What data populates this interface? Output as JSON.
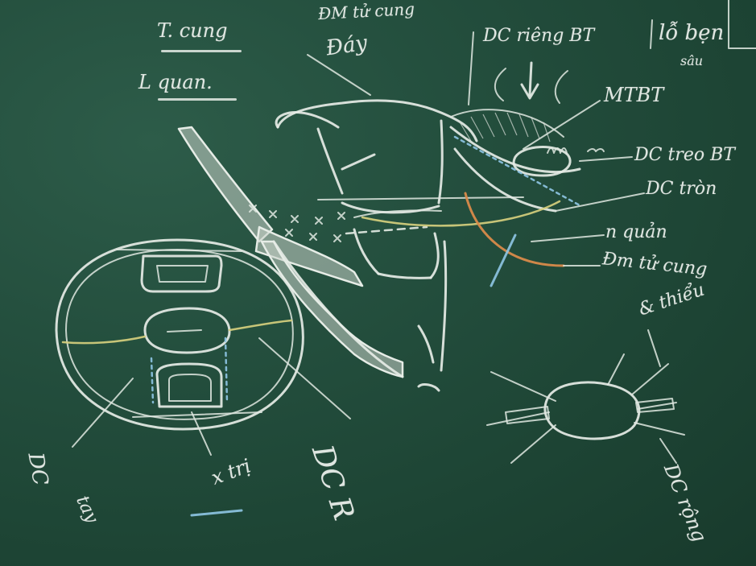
{
  "scene": {
    "subject": "Chalkboard anatomy sketch",
    "colors": {
      "board": "#1f4a3a",
      "chalk_white": "#e6ece6",
      "chalk_yellow": "#d9d27e",
      "chalk_orange": "#d98a4a",
      "chalk_blue": "#8fc7e6"
    }
  },
  "labels": {
    "dm_tu_cung_top": "ĐM tử cung",
    "day": "Đáy",
    "t_cung": "T. cung",
    "l_quan": "L quan.",
    "dc_rieng_bt": "DC riêng BT",
    "lo_ben": "lỗ bẹn",
    "sau": "sâu",
    "mt_bt": "MTBT",
    "dc_treo_bt": "DC treo BT",
    "dc_tron": "DC tròn",
    "n_quan": "n quản",
    "dm_tu_cung_right": "Đm tử cung",
    "dc_thieu": "& thiểu",
    "dc_r": "DC R",
    "x_tri": "x trị",
    "dc_left": "DC",
    "tay": "tay",
    "dc_rong": "DC rộng"
  }
}
